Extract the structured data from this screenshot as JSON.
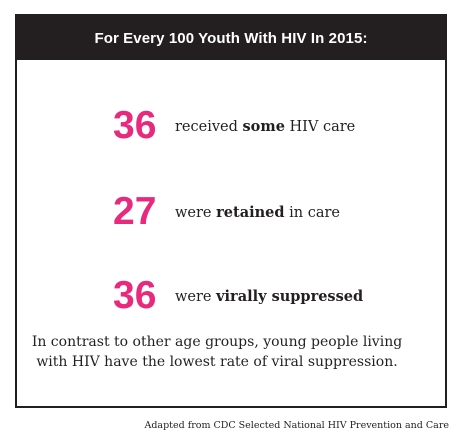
{
  "header": {
    "title": "For Every 100 Youth With HIV In 2015:"
  },
  "stats": [
    {
      "number": "36",
      "pre": "received ",
      "bold": "some",
      "post": " HIV care"
    },
    {
      "number": "27",
      "pre": "were ",
      "bold": "retained",
      "post": " in care"
    },
    {
      "number": "36",
      "pre": "were ",
      "bold": "virally suppressed",
      "post": ""
    }
  ],
  "note": "In contrast to other age groups, young people living with HIV have the lowest rate of viral suppression.",
  "source": "Adapted from CDC  Selected National HIV Prevention and Care"
}
